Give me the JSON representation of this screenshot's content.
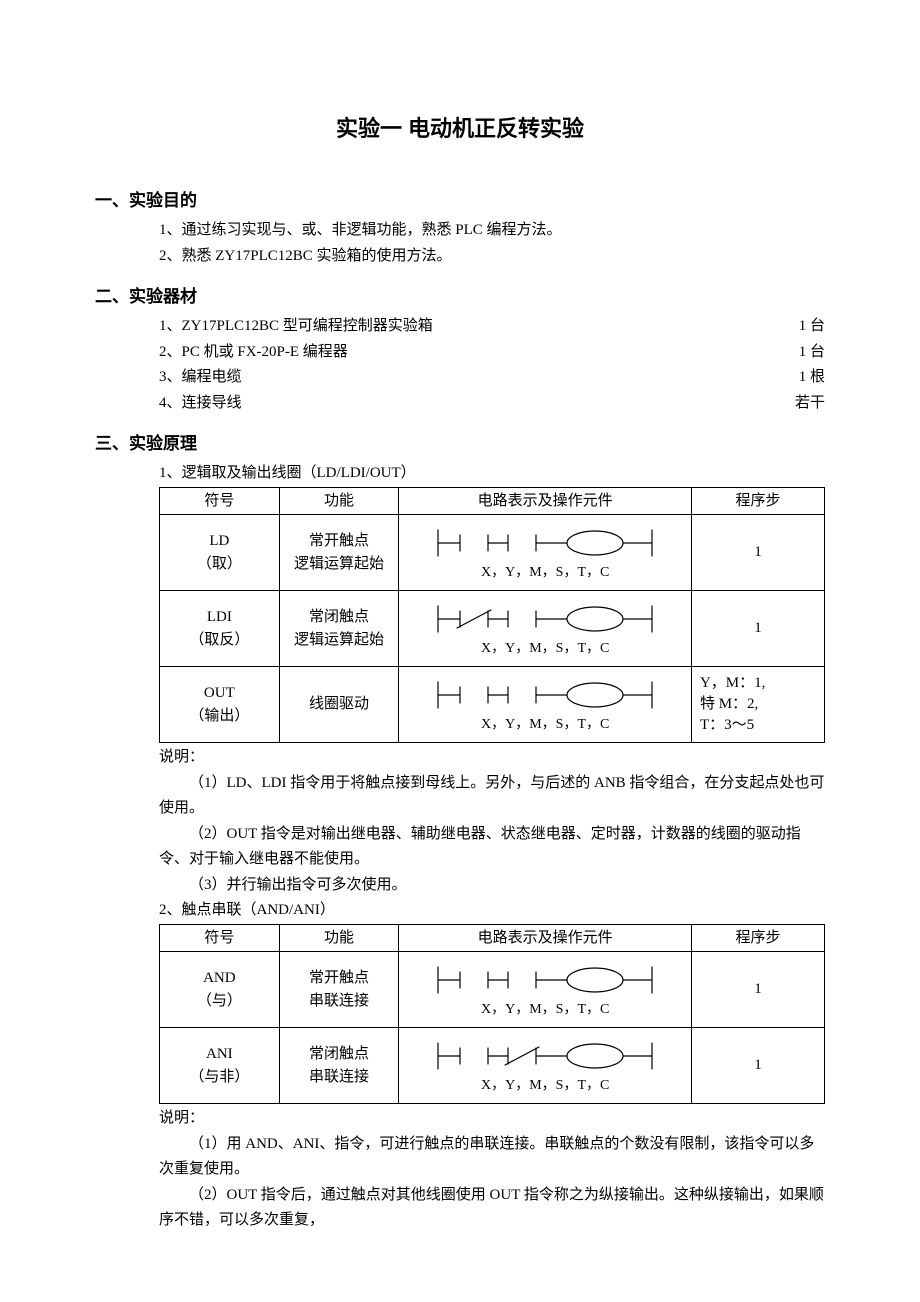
{
  "title": "实验一  电动机正反转实验",
  "sec1": {
    "heading": "一、实验目的",
    "item1": "1、通过练习实现与、或、非逻辑功能，熟悉 PLC 编程方法。",
    "item2": "2、熟悉 ZY17PLC12BC 实验箱的使用方法。"
  },
  "sec2": {
    "heading": "二、实验器材",
    "item1": "1、ZY17PLC12BC 型可编程控制器实验箱",
    "qty1": "1 台",
    "item2": "2、PC 机或 FX-20P-E 编程器",
    "qty2": "1 台",
    "item3": "3、编程电缆",
    "qty3": "1 根",
    "item4": "4、连接导线",
    "qty4": "若干"
  },
  "sec3": {
    "heading": "三、实验原理",
    "sub1_title": "1、逻辑取及输出线圈（LD/LDI/OUT）",
    "columns": {
      "c1": "符号",
      "c2": "功能",
      "c3": "电路表示及操作元件",
      "c4": "程序步"
    },
    "table1": {
      "r1": {
        "sym": "LD\n（取）",
        "func": "常开触点\n逻辑运算起始",
        "label": "X，Y，M，S，T，C",
        "step": "1",
        "contact": "open_first"
      },
      "r2": {
        "sym": "LDI\n（取反）",
        "func": "常闭触点\n逻辑运算起始",
        "label": "X，Y，M，S，T，C",
        "step": "1",
        "contact": "closed_first"
      },
      "r3": {
        "sym": "OUT\n（输出）",
        "func": "线圈驱动",
        "label": "X，Y，M，S，T，C",
        "step": "Y，M：1,\n特 M：2,\nT：3～5",
        "contact": "open_first"
      }
    },
    "note1_label": "说明：",
    "note1_1": "（1）LD、LDI 指令用于将触点接到母线上。另外，与后述的 ANB 指令组合，在分支起点处也可使用。",
    "note1_2": "（2）OUT 指令是对输出继电器、辅助继电器、状态继电器、定时器，计数器的线圈的驱动指令、对于输入继电器不能使用。",
    "note1_3": "（3）并行输出指令可多次使用。",
    "sub2_title": "2、触点串联（AND/ANI）",
    "table2": {
      "r1": {
        "sym": "AND\n（与）",
        "func": "常开触点\n串联连接",
        "label": "X，Y，M，S，T，C",
        "step": "1",
        "contact": "open_second"
      },
      "r2": {
        "sym": "ANI\n（与非）",
        "func": "常闭触点\n串联连接",
        "label": "X，Y，M，S，T，C",
        "step": "1",
        "contact": "closed_second"
      }
    },
    "note2_label": "说明：",
    "note2_1": "（1）用 AND、ANI、指令，可进行触点的串联连接。串联触点的个数没有限制，该指令可以多次重复使用。",
    "note2_2": "（2）OUT 指令后，通过触点对其他线圈使用 OUT 指令称之为纵接输出。这种纵接输出，如果顺序不错，可以多次重复，"
  },
  "svg": {
    "stroke": "#000000",
    "stroke_width": 1.2
  }
}
